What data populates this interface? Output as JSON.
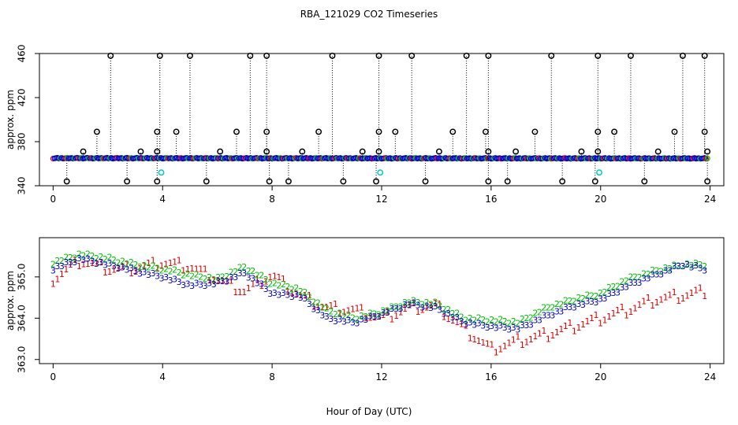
{
  "chart_data": [
    {
      "type": "scatter",
      "title": "RBA_121029  CO2 Timeseries",
      "xlabel": "",
      "ylabel": "approx. ppm",
      "xlim": [
        -0.5,
        24.5
      ],
      "ylim": [
        340,
        460
      ],
      "xticks": [
        "0",
        "4",
        "8",
        "12",
        "16",
        "20",
        "24"
      ],
      "yticks": [
        "340",
        "380",
        "420",
        "460"
      ],
      "baseline": {
        "start": 365.0,
        "end": 364.8
      },
      "spikes_high": [
        2.1,
        3.9,
        5.0,
        7.2,
        7.8,
        10.2,
        11.9,
        13.1,
        15.1,
        15.9,
        18.2,
        19.9,
        21.1,
        23.0,
        23.8
      ],
      "spikes_mid": [
        1.6,
        3.8,
        4.5,
        6.7,
        7.8,
        9.7,
        11.9,
        12.5,
        14.6,
        15.8,
        17.6,
        19.9,
        20.5,
        22.7,
        23.8
      ],
      "spikes_low": [
        1.1,
        3.2,
        3.8,
        6.1,
        7.8,
        9.1,
        11.3,
        11.9,
        14.1,
        15.9,
        16.9,
        19.3,
        19.9,
        22.1,
        23.9
      ],
      "dips": [
        0.5,
        2.7,
        3.8,
        5.6,
        7.9,
        8.6,
        10.6,
        11.8,
        13.6,
        15.9,
        16.6,
        18.6,
        19.8,
        21.6,
        23.9
      ],
      "cyan_points": [
        {
          "x": 3.95,
          "y": 352
        },
        {
          "x": 11.95,
          "y": 352
        },
        {
          "x": 19.95,
          "y": 352
        }
      ],
      "series": [
        {
          "name": "1",
          "color": "#dd0000"
        },
        {
          "name": "2",
          "color": "#00bb00"
        },
        {
          "name": "3",
          "color": "#0000cc"
        }
      ]
    },
    {
      "type": "line",
      "title": "",
      "xlabel": "Hour of Day (UTC)",
      "ylabel": "approx. ppm",
      "xlim": [
        -0.5,
        24.5
      ],
      "ylim": [
        362.9,
        365.95
      ],
      "xticks": [
        "0",
        "4",
        "8",
        "12",
        "16",
        "20",
        "24"
      ],
      "yticks": [
        "363.0",
        "364.0",
        "365.0"
      ],
      "x": [
        0,
        1,
        2,
        3,
        4,
        5,
        6,
        7,
        8,
        9,
        10,
        11,
        12,
        13,
        14,
        15,
        16,
        17,
        18,
        19,
        20,
        21,
        22,
        23,
        23.8
      ],
      "series": [
        {
          "name": "3",
          "color": "#0000cc",
          "values": [
            365.2,
            365.45,
            365.3,
            365.15,
            365.0,
            364.8,
            364.85,
            365.1,
            364.6,
            364.55,
            364.0,
            363.9,
            364.1,
            364.35,
            364.25,
            363.9,
            363.8,
            363.75,
            364.05,
            364.3,
            364.45,
            364.8,
            365.05,
            365.3,
            365.2
          ]
        },
        {
          "name": "2",
          "color": "#00bb00",
          "values": [
            365.35,
            365.55,
            365.45,
            365.3,
            365.2,
            365.05,
            364.95,
            365.25,
            364.85,
            364.7,
            364.2,
            364.0,
            364.15,
            364.4,
            364.35,
            364.0,
            363.95,
            363.9,
            364.25,
            364.45,
            364.6,
            364.95,
            365.15,
            365.3,
            365.3
          ]
        },
        {
          "name": "1",
          "color": "#dd0000",
          "values": [
            364.95,
            365.4,
            365.2,
            365.2,
            365.35,
            365.25,
            364.95,
            364.65,
            365.05,
            364.55,
            364.25,
            364.2,
            364.0,
            364.25,
            364.3,
            363.75,
            363.25,
            363.45,
            363.6,
            363.8,
            364.0,
            364.2,
            364.45,
            364.55,
            364.65
          ]
        }
      ]
    }
  ]
}
